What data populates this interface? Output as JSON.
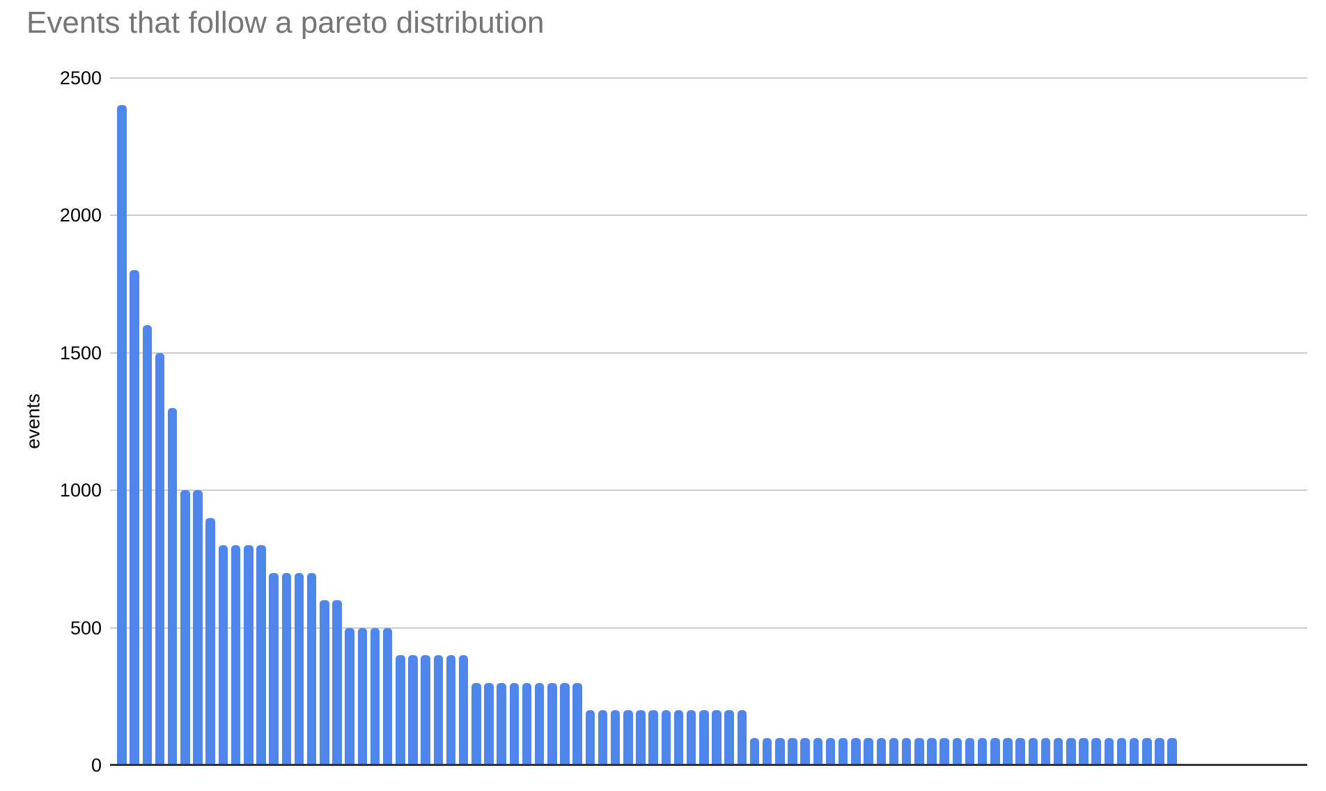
{
  "title": "Events that follow a pareto distribution",
  "y_axis_title": "events",
  "colors": {
    "bar": "#4e86ec",
    "title": "#757575",
    "tick_label": "#000000",
    "gridline": "#cccccc",
    "axis_line": "#333333",
    "background": "#ffffff"
  },
  "chart_data": {
    "type": "bar",
    "title": "Events that follow a pareto distribution",
    "xlabel": "",
    "ylabel": "events",
    "ylim": [
      0,
      2500
    ],
    "grid": true,
    "legend": false,
    "x_tick_labels_shown": false,
    "y_tick_values": [
      0,
      500,
      1000,
      1500,
      2000,
      2500
    ],
    "y_tick_labels": [
      "0",
      "500",
      "1000",
      "1500",
      "2000",
      "2500"
    ],
    "categories": [],
    "values": [
      2400,
      1800,
      1600,
      1500,
      1300,
      1000,
      1000,
      900,
      800,
      800,
      800,
      800,
      700,
      700,
      700,
      700,
      600,
      600,
      500,
      500,
      500,
      500,
      400,
      400,
      400,
      400,
      400,
      400,
      300,
      300,
      300,
      300,
      300,
      300,
      300,
      300,
      300,
      200,
      200,
      200,
      200,
      200,
      200,
      200,
      200,
      200,
      200,
      200,
      200,
      200,
      100,
      100,
      100,
      100,
      100,
      100,
      100,
      100,
      100,
      100,
      100,
      100,
      100,
      100,
      100,
      100,
      100,
      100,
      100,
      100,
      100,
      100,
      100,
      100,
      100,
      100,
      100,
      100,
      100,
      100,
      100,
      100,
      100,
      100
    ]
  }
}
